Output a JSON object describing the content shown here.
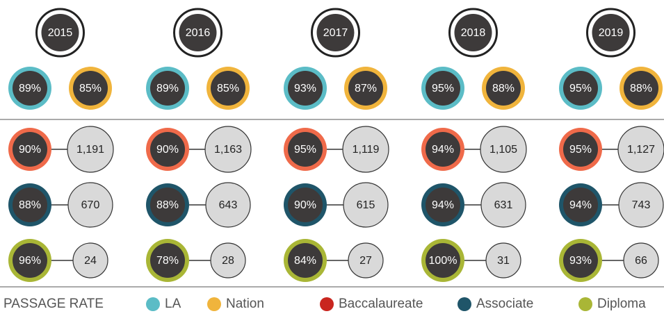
{
  "years": [
    {
      "year": "2015",
      "la": "89%",
      "nation": "85%",
      "baccalaureate": {
        "rate": "90%",
        "count": "1,191"
      },
      "associate": {
        "rate": "88%",
        "count": "670"
      },
      "diploma": {
        "rate": "96%",
        "count": "24"
      }
    },
    {
      "year": "2016",
      "la": "89%",
      "nation": "85%",
      "baccalaureate": {
        "rate": "90%",
        "count": "1,163"
      },
      "associate": {
        "rate": "88%",
        "count": "643"
      },
      "diploma": {
        "rate": "78%",
        "count": "28"
      }
    },
    {
      "year": "2017",
      "la": "93%",
      "nation": "87%",
      "baccalaureate": {
        "rate": "95%",
        "count": "1,119"
      },
      "associate": {
        "rate": "90%",
        "count": "615"
      },
      "diploma": {
        "rate": "84%",
        "count": "27"
      }
    },
    {
      "year": "2018",
      "la": "95%",
      "nation": "88%",
      "baccalaureate": {
        "rate": "94%",
        "count": "1,105"
      },
      "associate": {
        "rate": "94%",
        "count": "631"
      },
      "diploma": {
        "rate": "100%",
        "count": "31"
      }
    },
    {
      "year": "2019",
      "la": "95%",
      "nation": "88%",
      "baccalaureate": {
        "rate": "95%",
        "count": "1,127"
      },
      "associate": {
        "rate": "94%",
        "count": "743"
      },
      "diploma": {
        "rate": "93%",
        "count": "66"
      }
    }
  ],
  "legend": {
    "title": "PASSAGE RATE",
    "items": [
      "LA",
      "Nation",
      "Baccalaureate",
      "Associate",
      "Diploma"
    ]
  }
}
